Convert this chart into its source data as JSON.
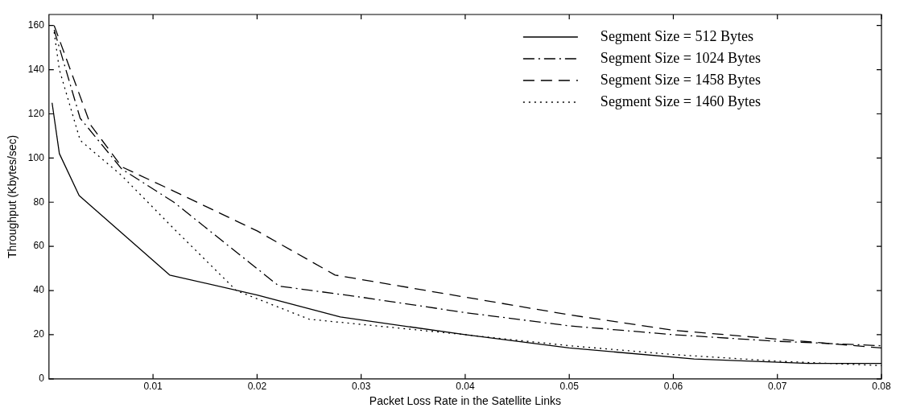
{
  "chart_data": {
    "type": "line",
    "xlabel": "Packet Loss Rate in the Satellite Links",
    "ylabel": "Throughput (Kbytes/sec)",
    "xlim": [
      0,
      0.08
    ],
    "xticks": [
      0.01,
      0.02,
      0.03,
      0.04,
      0.05,
      0.06,
      0.07,
      0.08
    ],
    "ylim": [
      0,
      165
    ],
    "yticks": [
      0,
      20,
      40,
      60,
      80,
      100,
      120,
      140,
      160
    ],
    "grid": false,
    "legend": "top right",
    "marker": "none",
    "series": [
      {
        "name": "Segment Size = 512 Bytes",
        "color": "#000000",
        "line_style": "solid",
        "x": [
          0.0003,
          0.001,
          0.0029,
          0.0116,
          0.02,
          0.028,
          0.04,
          0.05,
          0.062,
          0.073,
          0.08
        ],
        "values": [
          125,
          102,
          83,
          47,
          38,
          28,
          20,
          14,
          9,
          7,
          7
        ]
      },
      {
        "name": "Segment Size = 1024 Bytes",
        "color": "#000000",
        "line_style": "dashdot",
        "x": [
          0.0005,
          0.003,
          0.007,
          0.012,
          0.0221,
          0.03,
          0.04,
          0.05,
          0.06,
          0.07,
          0.08
        ],
        "values": [
          158,
          118,
          95,
          80,
          42,
          37,
          30,
          24,
          20,
          17,
          15
        ]
      },
      {
        "name": "Segment Size = 1458 Bytes",
        "color": "#000000",
        "line_style": "dashed",
        "x": [
          0.0005,
          0.004,
          0.007,
          0.012,
          0.02,
          0.0275,
          0.04,
          0.05,
          0.06,
          0.07,
          0.08
        ],
        "values": [
          160,
          115,
          96,
          85,
          67,
          47,
          37,
          29,
          22,
          18,
          14
        ]
      },
      {
        "name": "Segment Size = 1460 Bytes",
        "color": "#000000",
        "line_style": "dotted",
        "x": [
          0.0005,
          0.001,
          0.003,
          0.007,
          0.012,
          0.018,
          0.025,
          0.04,
          0.05,
          0.06,
          0.07,
          0.08
        ],
        "values": [
          157,
          140,
          108,
          92,
          68,
          40,
          27,
          20,
          15,
          11,
          8,
          6
        ]
      }
    ]
  }
}
